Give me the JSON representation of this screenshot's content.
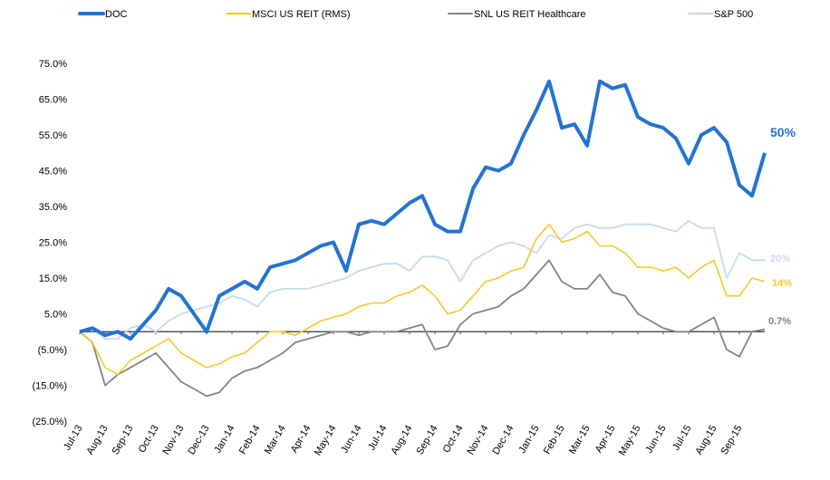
{
  "chart_data": {
    "type": "line",
    "title": "",
    "xlabel": "",
    "ylabel": "",
    "ylim": [
      -25,
      75
    ],
    "y_ticks": [
      "75.0%",
      "65.0%",
      "55.0%",
      "45.0%",
      "35.0%",
      "25.0%",
      "15.0%",
      "5.0%",
      "(5.0%)",
      "(15.0%)",
      "(25.0%)"
    ],
    "y_tick_values": [
      75,
      65,
      55,
      45,
      35,
      25,
      15,
      5,
      -5,
      -15,
      -25
    ],
    "x_tick_labels": [
      "Jul-13",
      "Aug-13",
      "Sep-13",
      "Oct-13",
      "Nov-13",
      "Dec-13",
      "Jan-14",
      "Feb-14",
      "Mar-14",
      "Apr-14",
      "May-14",
      "Jun-14",
      "Jul-14",
      "Aug-14",
      "Sep-14",
      "Oct-14",
      "Nov-14",
      "Dec-14",
      "Jan-15",
      "Feb-15",
      "Mar-15",
      "Apr-15",
      "May-15",
      "Jun-15",
      "Jul-15",
      "Aug-15",
      "Sep-15"
    ],
    "x_unit": "months since Jul-13 (half-month steps)",
    "x_range": [
      0,
      27
    ],
    "legend_placement": "top",
    "grid": false,
    "series": [
      {
        "name": "DOC",
        "color": "#2373D3",
        "width": 4,
        "end_label": "50%",
        "values": [
          0,
          1,
          -1,
          0,
          -2,
          2,
          6,
          12,
          10,
          5,
          0,
          10,
          12,
          14,
          12,
          18,
          19,
          20,
          22,
          24,
          25,
          17,
          30,
          31,
          30,
          33,
          36,
          38,
          30,
          28,
          28,
          40,
          46,
          45,
          47,
          55,
          62,
          70,
          57,
          58,
          52,
          70,
          68,
          69,
          60,
          58,
          57,
          54,
          47,
          55,
          57,
          53,
          41,
          38,
          50
        ]
      },
      {
        "name": "MSCI US REIT (RMS)",
        "color": "#F5C928",
        "width": 1.6,
        "end_label": "14%",
        "values": [
          0,
          -3,
          -10,
          -12,
          -8,
          -6,
          -4,
          -2,
          -6,
          -8,
          -10,
          -9,
          -7,
          -6,
          -3,
          0,
          0,
          -1,
          1,
          3,
          4,
          5,
          7,
          8,
          8,
          10,
          11,
          13,
          10,
          5,
          6,
          10,
          14,
          15,
          17,
          18,
          26,
          30,
          25,
          26,
          28,
          24,
          24,
          22,
          18,
          18,
          17,
          18,
          15,
          18,
          20,
          10,
          10,
          15,
          14
        ]
      },
      {
        "name": "SNL US REIT Healthcare",
        "color": "#848484",
        "width": 1.8,
        "end_label": "0.7%",
        "values": [
          0,
          -3,
          -15,
          -12,
          -10,
          -8,
          -6,
          -10,
          -14,
          -16,
          -18,
          -17,
          -13,
          -11,
          -10,
          -8,
          -6,
          -3,
          -2,
          -1,
          0,
          0,
          -1,
          0,
          0,
          0,
          1,
          2,
          -5,
          -4,
          2,
          5,
          6,
          7,
          10,
          12,
          16,
          20,
          14,
          12,
          12,
          16,
          11,
          10,
          5,
          3,
          1,
          0,
          0,
          2,
          4,
          -5,
          -7,
          0,
          0.7
        ]
      },
      {
        "name": "S&P 500",
        "color": "#C8DAEA",
        "width": 1.8,
        "end_label": "20%",
        "values": [
          0,
          1,
          -2,
          -2,
          1,
          2,
          0,
          3,
          5,
          6,
          7,
          8,
          10,
          9,
          7,
          11,
          12,
          12,
          12,
          13,
          14,
          15,
          17,
          18,
          19,
          19,
          17,
          21,
          21,
          20,
          14,
          20,
          22,
          24,
          25,
          24,
          22,
          27,
          26,
          29,
          30,
          29,
          29,
          30,
          30,
          30,
          29,
          28,
          31,
          29,
          29,
          15,
          22,
          20,
          20
        ]
      }
    ]
  }
}
